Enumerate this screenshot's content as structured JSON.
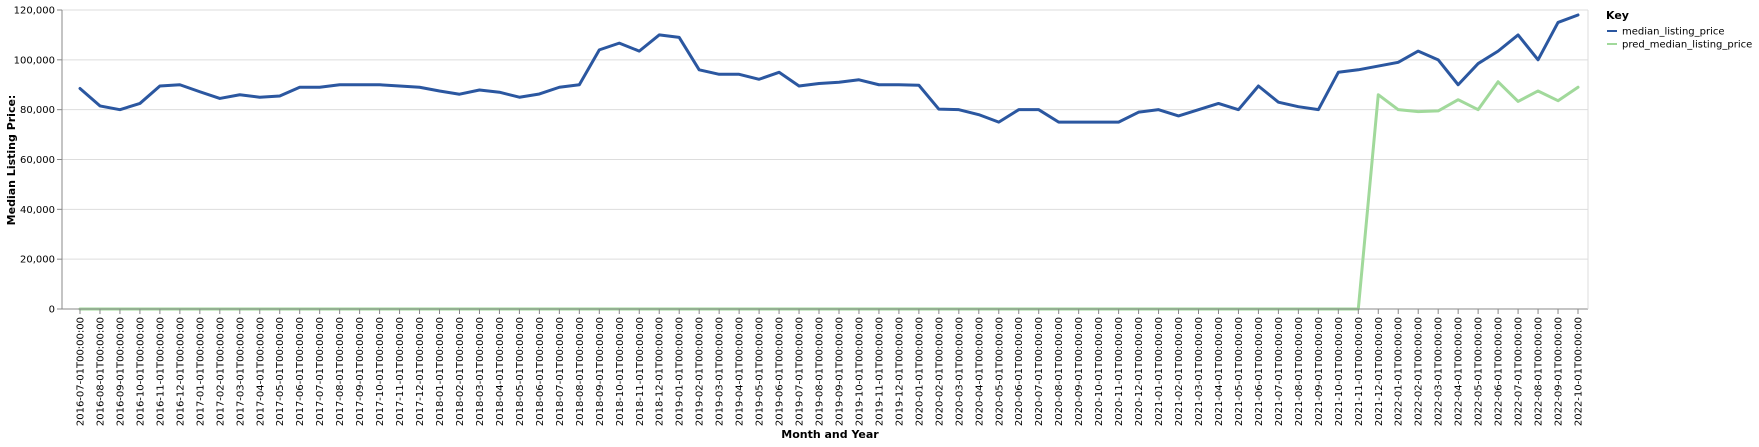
{
  "chart_data": {
    "type": "line",
    "xlabel": "Month and Year",
    "ylabel": "Median Listing Price:",
    "ylim": [
      0,
      120000
    ],
    "yticks": [
      "0",
      "20,000",
      "40,000",
      "60,000",
      "80,000",
      "100,000",
      "120,000"
    ],
    "ytick_values": [
      0,
      20000,
      40000,
      60000,
      80000,
      100000,
      120000
    ],
    "grid": true,
    "legend_title": "Key",
    "legend_position": "top-right",
    "x": [
      "2016-07-01T00:00:00",
      "2016-08-01T00:00:00",
      "2016-09-01T00:00:00",
      "2016-10-01T00:00:00",
      "2016-11-01T00:00:00",
      "2016-12-01T00:00:00",
      "2017-01-01T00:00:00",
      "2017-02-01T00:00:00",
      "2017-03-01T00:00:00",
      "2017-04-01T00:00:00",
      "2017-05-01T00:00:00",
      "2017-06-01T00:00:00",
      "2017-07-01T00:00:00",
      "2017-08-01T00:00:00",
      "2017-09-01T00:00:00",
      "2017-10-01T00:00:00",
      "2017-11-01T00:00:00",
      "2017-12-01T00:00:00",
      "2018-01-01T00:00:00",
      "2018-02-01T00:00:00",
      "2018-03-01T00:00:00",
      "2018-04-01T00:00:00",
      "2018-05-01T00:00:00",
      "2018-06-01T00:00:00",
      "2018-07-01T00:00:00",
      "2018-08-01T00:00:00",
      "2018-09-01T00:00:00",
      "2018-10-01T00:00:00",
      "2018-11-01T00:00:00",
      "2018-12-01T00:00:00",
      "2019-01-01T00:00:00",
      "2019-02-01T00:00:00",
      "2019-03-01T00:00:00",
      "2019-04-01T00:00:00",
      "2019-05-01T00:00:00",
      "2019-06-01T00:00:00",
      "2019-07-01T00:00:00",
      "2019-08-01T00:00:00",
      "2019-09-01T00:00:00",
      "2019-10-01T00:00:00",
      "2019-11-01T00:00:00",
      "2019-12-01T00:00:00",
      "2020-01-01T00:00:00",
      "2020-02-01T00:00:00",
      "2020-03-01T00:00:00",
      "2020-04-01T00:00:00",
      "2020-05-01T00:00:00",
      "2020-06-01T00:00:00",
      "2020-07-01T00:00:00",
      "2020-08-01T00:00:00",
      "2020-09-01T00:00:00",
      "2020-10-01T00:00:00",
      "2020-11-01T00:00:00",
      "2020-12-01T00:00:00",
      "2021-01-01T00:00:00",
      "2021-02-01T00:00:00",
      "2021-03-01T00:00:00",
      "2021-04-01T00:00:00",
      "2021-05-01T00:00:00",
      "2021-06-01T00:00:00",
      "2021-07-01T00:00:00",
      "2021-08-01T00:00:00",
      "2021-09-01T00:00:00",
      "2021-10-01T00:00:00",
      "2021-11-01T00:00:00",
      "2021-12-01T00:00:00",
      "2022-01-01T00:00:00",
      "2022-02-01T00:00:00",
      "2022-03-01T00:00:00",
      "2022-04-01T00:00:00",
      "2022-05-01T00:00:00",
      "2022-06-01T00:00:00",
      "2022-07-01T00:00:00",
      "2022-08-01T00:00:00",
      "2022-09-01T00:00:00",
      "2022-10-01T00:00:00"
    ],
    "series": [
      {
        "name": "median_listing_price",
        "color": "#2b57a0",
        "values": [
          88500,
          81500,
          80000,
          82500,
          89500,
          90000,
          87200,
          84500,
          86000,
          85000,
          85500,
          89000,
          89000,
          90000,
          90000,
          90000,
          89500,
          89000,
          87500,
          86200,
          87900,
          87000,
          85000,
          86300,
          89000,
          90000,
          104000,
          106700,
          103500,
          110000,
          109000,
          96000,
          94200,
          94200,
          92200,
          95000,
          89500,
          90500,
          91000,
          92000,
          90000,
          90000,
          89800,
          80200,
          80000,
          78000,
          75000,
          80000,
          80000,
          75000,
          75000,
          75000,
          75000,
          79000,
          80000,
          77500,
          80000,
          82500,
          80000,
          89500,
          83000,
          81200,
          80000,
          95000,
          96000,
          97500,
          99000,
          103500,
          100000,
          90000,
          98500,
          103500,
          110000,
          100000,
          115000,
          118000
        ]
      },
      {
        "name": "pred_median_listing_price",
        "color": "#a1d99b",
        "values": [
          0,
          0,
          0,
          0,
          0,
          0,
          0,
          0,
          0,
          0,
          0,
          0,
          0,
          0,
          0,
          0,
          0,
          0,
          0,
          0,
          0,
          0,
          0,
          0,
          0,
          0,
          0,
          0,
          0,
          0,
          0,
          0,
          0,
          0,
          0,
          0,
          0,
          0,
          0,
          0,
          0,
          0,
          0,
          0,
          0,
          0,
          0,
          0,
          0,
          0,
          0,
          0,
          0,
          0,
          0,
          0,
          0,
          0,
          0,
          0,
          0,
          0,
          0,
          0,
          0,
          86000,
          80000,
          79200,
          79500,
          84000,
          80000,
          91200,
          83300,
          87500,
          83600,
          89000
        ]
      }
    ]
  }
}
